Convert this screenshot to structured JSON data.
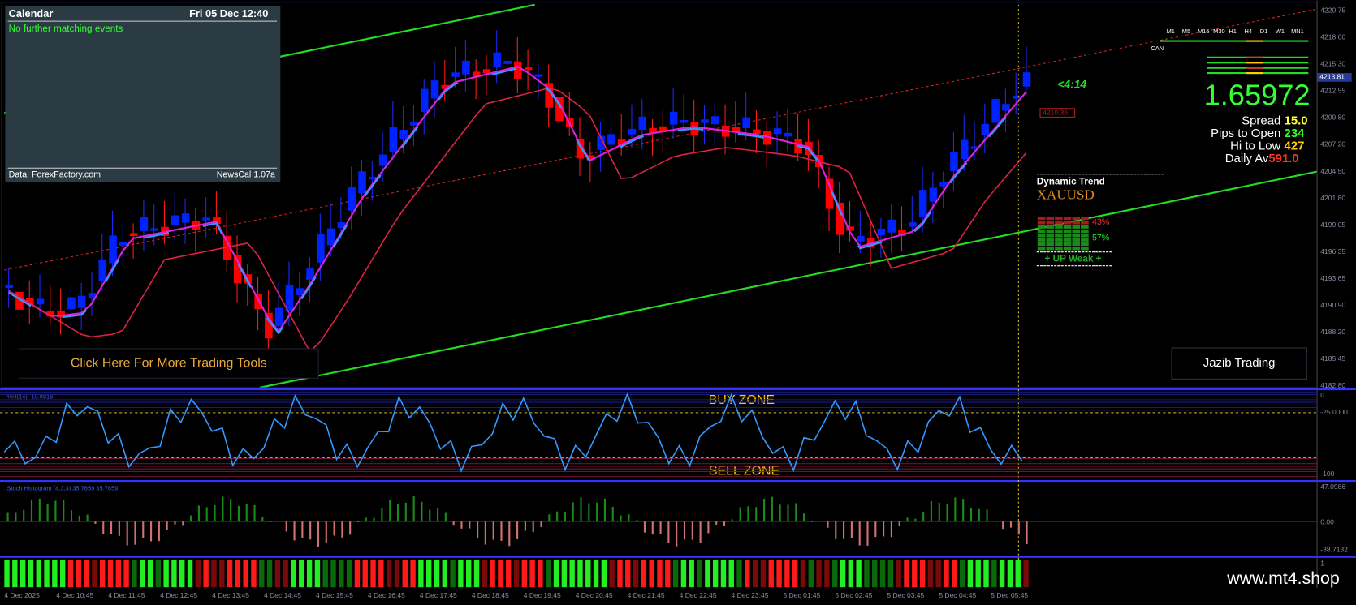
{
  "calendar": {
    "title": "Calendar",
    "datetime": "Fri 05 Dec 12:40",
    "message": "No further matching events",
    "source": "Data: ForexFactory.com",
    "version": "NewsCal 1.07a"
  },
  "buttons": {
    "tools": "Click Here For More Trading Tools",
    "brand": "Jazib Trading"
  },
  "timer": "<4:14",
  "info": {
    "price": "1.65972",
    "rows": [
      {
        "label": "Spread",
        "value": "15.0"
      },
      {
        "label": "Pips to Open",
        "value": "234"
      },
      {
        "label": "Hi to Low",
        "value": "427"
      },
      {
        "label": "Daily Av",
        "value": "591.0"
      }
    ]
  },
  "trend": {
    "title": "Dynamic Trend",
    "symbol": "XAUUSD",
    "bear": "43%",
    "bull": "57%",
    "status": "+ UP Weak +"
  },
  "timeframes": [
    "M1",
    "M5",
    "M15",
    "M30",
    "H1",
    "H4",
    "D1",
    "W1",
    "MN1"
  ],
  "can": "CAN",
  "zones": {
    "buy": "BUY ZONE",
    "sell": "SELL ZONE"
  },
  "price_axis": [
    "4220.75",
    "4218.00",
    "4215.30",
    "4212.55",
    "4209.80",
    "4207.20",
    "4204.50",
    "4201.80",
    "4199.05",
    "4196.35",
    "4193.65",
    "4190.90",
    "4188.20",
    "4185.45",
    "4182.80"
  ],
  "current_price": "4213.81",
  "price_tags": [
    "4210.36"
  ],
  "wpr": {
    "label": "%R(14) -10.8816",
    "axis": [
      "0",
      "-25.0000",
      "-100"
    ]
  },
  "stoch": {
    "label": "Stoch Histogram (4,3,3) 35.7659 35.7659",
    "axis": [
      "47.0986",
      "0.00",
      "-38.7132"
    ]
  },
  "bars": {
    "axis": [
      "1"
    ]
  },
  "time_axis": [
    "4 Dec 2025",
    "4 Dec 10:45",
    "4 Dec 11:45",
    "4 Dec 12:45",
    "4 Dec 13:45",
    "4 Dec 14:45",
    "4 Dec 15:45",
    "4 Dec 16:45",
    "4 Dec 17:45",
    "4 Dec 18:45",
    "4 Dec 19:45",
    "4 Dec 20:45",
    "4 Dec 21:45",
    "4 Dec 22:45",
    "4 Dec 23:45",
    "5 Dec 01:45",
    "5 Dec 02:45",
    "5 Dec 03:45",
    "5 Dec 04:45",
    "5 Dec 05:45"
  ],
  "watermark": "www.mt4.shop"
}
